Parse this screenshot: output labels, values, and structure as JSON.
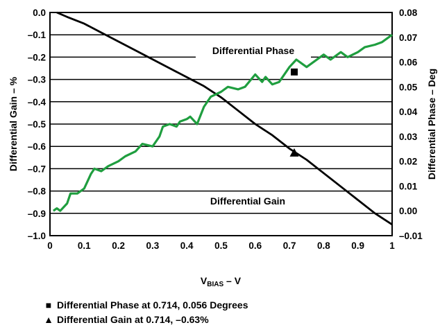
{
  "chart_data": {
    "type": "line",
    "xlabel": "VBIAS – V",
    "xlabel_main": "V",
    "xlabel_sub": "BIAS",
    "xlabel_tail": " – V",
    "ylabel": "Differential Gain – %",
    "y2label": "Differential Phase – Deg",
    "xlim": [
      0,
      1
    ],
    "ylim": [
      -1.0,
      0.0
    ],
    "y2lim": [
      -0.01,
      0.08
    ],
    "x_ticks": [
      "0",
      "0.1",
      "0.2",
      "0.3",
      "0.4",
      "0.5",
      "0.6",
      "0.7",
      "0.8",
      "0.9",
      "1"
    ],
    "y_ticks": [
      "0.0",
      "–0.1",
      "–0.2",
      "–0.3",
      "–0.4",
      "–0.5",
      "–0.6",
      "–0.7",
      "–0.8",
      "–0.9",
      "–1.0"
    ],
    "y2_ticks": [
      "0.08",
      "0.07",
      "0.06",
      "0.05",
      "0.04",
      "0.03",
      "0.02",
      "0.01",
      "0.00",
      "–0.01"
    ],
    "grid": "horizontal",
    "series": [
      {
        "name": "Differential Gain",
        "axis": "left",
        "color": "#000000",
        "x": [
          0.02,
          0.05,
          0.1,
          0.15,
          0.2,
          0.25,
          0.3,
          0.35,
          0.4,
          0.45,
          0.5,
          0.55,
          0.6,
          0.65,
          0.7,
          0.75,
          0.8,
          0.85,
          0.9,
          0.95,
          1.0
        ],
        "y": [
          0.0,
          -0.02,
          -0.05,
          -0.09,
          -0.13,
          -0.17,
          -0.21,
          -0.25,
          -0.29,
          -0.33,
          -0.38,
          -0.44,
          -0.5,
          -0.55,
          -0.61,
          -0.66,
          -0.72,
          -0.78,
          -0.84,
          -0.9,
          -0.95
        ]
      },
      {
        "name": "Differential Phase",
        "axis": "right",
        "color": "#1f9e3f",
        "x": [
          0.01,
          0.02,
          0.03,
          0.05,
          0.06,
          0.08,
          0.1,
          0.12,
          0.13,
          0.15,
          0.17,
          0.2,
          0.22,
          0.25,
          0.27,
          0.3,
          0.32,
          0.33,
          0.35,
          0.37,
          0.38,
          0.4,
          0.41,
          0.43,
          0.45,
          0.47,
          0.5,
          0.52,
          0.55,
          0.57,
          0.6,
          0.62,
          0.63,
          0.65,
          0.67,
          0.7,
          0.72,
          0.75,
          0.77,
          0.8,
          0.82,
          0.85,
          0.87,
          0.9,
          0.92,
          0.95,
          0.97,
          1.0
        ],
        "y": [
          0.0,
          0.001,
          0.0,
          0.003,
          0.007,
          0.007,
          0.009,
          0.015,
          0.017,
          0.016,
          0.018,
          0.02,
          0.022,
          0.024,
          0.027,
          0.026,
          0.03,
          0.034,
          0.035,
          0.034,
          0.036,
          0.037,
          0.038,
          0.035,
          0.042,
          0.046,
          0.048,
          0.05,
          0.049,
          0.05,
          0.055,
          0.052,
          0.054,
          0.051,
          0.052,
          0.058,
          0.061,
          0.058,
          0.06,
          0.063,
          0.061,
          0.064,
          0.062,
          0.064,
          0.066,
          0.067,
          0.068,
          0.071
        ]
      }
    ],
    "markers": [
      {
        "shape": "square",
        "axis": "right",
        "x": 0.714,
        "y": 0.056
      },
      {
        "shape": "triangle",
        "axis": "left",
        "x": 0.714,
        "y": -0.63
      }
    ],
    "annotations": [
      "Differential Phase",
      "Differential Gain"
    ],
    "legend": [
      {
        "marker": "■",
        "text": "Differential Phase at 0.714, 0.056 Degrees"
      },
      {
        "marker": "▲",
        "text": "Differential Gain  at 0.714, –0.63%"
      }
    ]
  }
}
